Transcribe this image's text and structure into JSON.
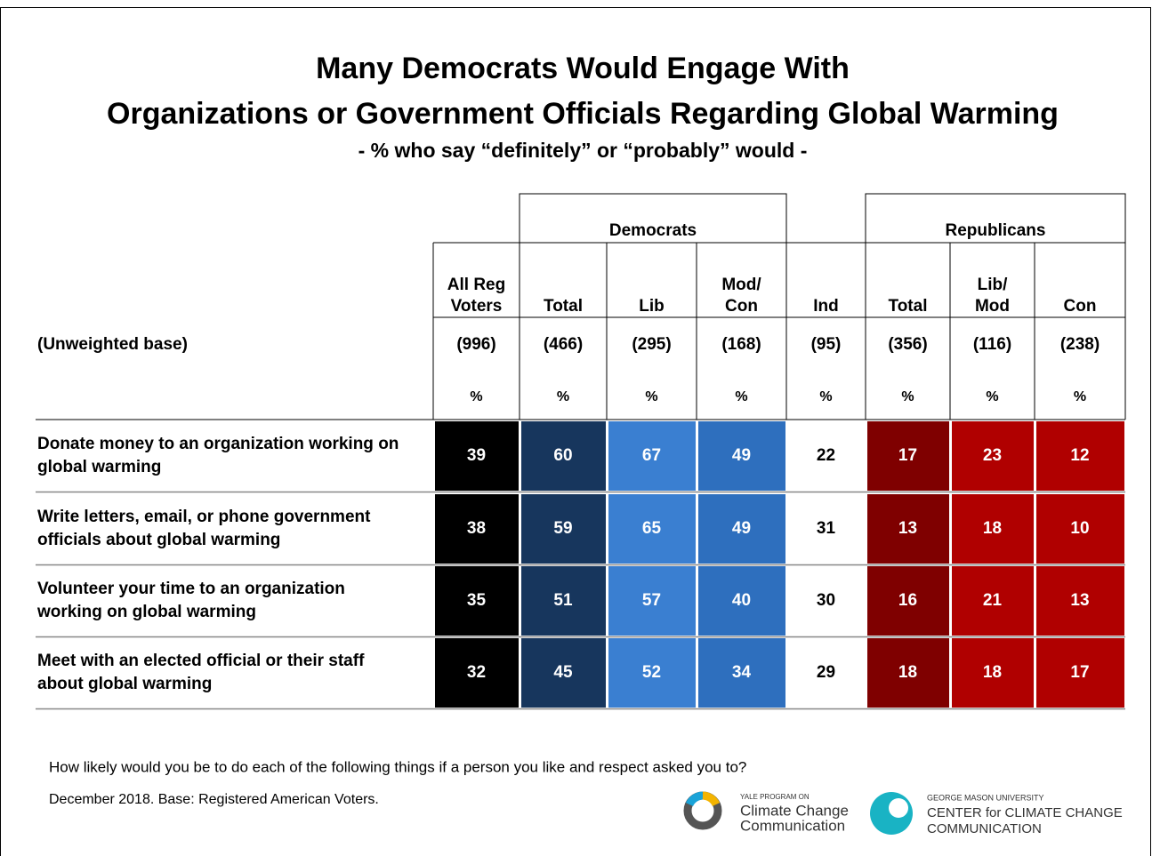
{
  "title": [
    "Many Democrats Would Engage With",
    "Organizations or Government Officials Regarding Global Warming"
  ],
  "subtitle": "- % who say “definitely” or “probably” would -",
  "table": {
    "groups": [
      "Democrats",
      "Republicans"
    ],
    "columns": [
      [
        "All Reg",
        "Voters"
      ],
      [
        "Total"
      ],
      [
        "Lib"
      ],
      [
        "Mod/",
        "Con"
      ],
      [
        "Ind"
      ],
      [
        "Total"
      ],
      [
        "Lib/",
        "Mod"
      ],
      [
        "Con"
      ]
    ],
    "base_label": "(Unweighted base)",
    "bases": [
      "(996)",
      "(466)",
      "(295)",
      "(168)",
      "(95)",
      "(356)",
      "(116)",
      "(238)"
    ],
    "units": [
      "%",
      "%",
      "%",
      "%",
      "%",
      "%",
      "%",
      "%"
    ],
    "rows": [
      {
        "label": [
          "Donate money to an organization working on",
          "global warming"
        ],
        "values": [
          39,
          60,
          67,
          49,
          22,
          17,
          23,
          12
        ]
      },
      {
        "label": [
          "Write letters, email, or phone government",
          "officials about global warming"
        ],
        "values": [
          38,
          59,
          65,
          49,
          31,
          13,
          18,
          10
        ]
      },
      {
        "label": [
          "Volunteer your time to an organization",
          "working on global warming"
        ],
        "values": [
          35,
          51,
          57,
          40,
          30,
          16,
          21,
          13
        ]
      },
      {
        "label": [
          "Meet with an elected official or their staff",
          "about global warming"
        ],
        "values": [
          32,
          45,
          52,
          34,
          29,
          18,
          18,
          17
        ]
      }
    ]
  },
  "question": "How likely would you be to do each of the following things if a person you like and respect asked you to?",
  "source": "December 2018. Base: Registered American Voters.",
  "logos": {
    "yale": [
      "YALE PROGRAM ON",
      "Climate Change",
      "Communication"
    ],
    "gmu": [
      "GEORGE MASON UNIVERSITY",
      "CENTER for CLIMATE CHANGE",
      "COMMUNICATION"
    ]
  }
}
